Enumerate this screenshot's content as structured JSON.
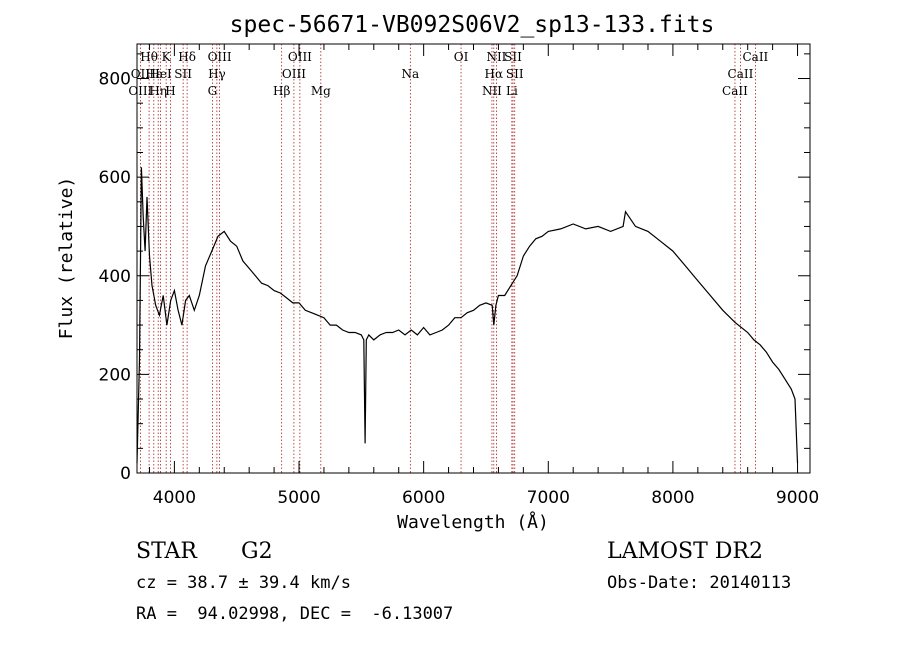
{
  "chart_data": {
    "type": "line",
    "title": "spec-56671-VB092S06V2_sp13-133.fits",
    "xlabel": "Wavelength (Å)",
    "ylabel": "Flux (relative)",
    "xlim": [
      3700,
      9100
    ],
    "ylim": [
      0,
      870
    ],
    "x_ticks": [
      4000,
      5000,
      6000,
      7000,
      8000,
      9000
    ],
    "y_ticks": [
      0,
      200,
      400,
      600,
      800
    ],
    "grid": false,
    "series": [
      {
        "x": [
          3700,
          3720,
          3735,
          3750,
          3765,
          3780,
          3800,
          3820,
          3850,
          3880,
          3910,
          3940,
          3970,
          4000,
          4030,
          4060,
          4090,
          4120,
          4160,
          4200,
          4250,
          4300,
          4350,
          4400,
          4450,
          4500,
          4550,
          4600,
          4650,
          4700,
          4750,
          4800,
          4850,
          4900,
          4950,
          5000,
          5050,
          5100,
          5150,
          5200,
          5250,
          5300,
          5350,
          5400,
          5450,
          5500,
          5520,
          5530,
          5540,
          5560,
          5600,
          5650,
          5700,
          5750,
          5800,
          5850,
          5900,
          5950,
          6000,
          6050,
          6100,
          6150,
          6200,
          6250,
          6300,
          6350,
          6400,
          6450,
          6500,
          6550,
          6563,
          6580,
          6600,
          6650,
          6700,
          6750,
          6800,
          6850,
          6900,
          6950,
          7000,
          7100,
          7200,
          7300,
          7400,
          7500,
          7600,
          7620,
          7700,
          7800,
          7900,
          8000,
          8100,
          8200,
          8300,
          8400,
          8500,
          8600,
          8650,
          8700,
          8750,
          8800,
          8850,
          8900,
          8950,
          8980,
          9000
        ],
        "y": [
          20,
          230,
          620,
          520,
          450,
          560,
          440,
          380,
          340,
          320,
          360,
          300,
          350,
          370,
          330,
          300,
          350,
          360,
          330,
          360,
          420,
          450,
          480,
          490,
          470,
          460,
          430,
          415,
          400,
          385,
          380,
          370,
          365,
          355,
          345,
          345,
          330,
          325,
          320,
          315,
          300,
          300,
          290,
          285,
          285,
          280,
          270,
          60,
          270,
          280,
          270,
          280,
          285,
          285,
          290,
          280,
          290,
          280,
          295,
          280,
          285,
          290,
          300,
          315,
          315,
          325,
          330,
          340,
          345,
          340,
          300,
          340,
          360,
          360,
          380,
          400,
          440,
          460,
          475,
          480,
          490,
          495,
          505,
          495,
          500,
          490,
          500,
          530,
          500,
          490,
          470,
          450,
          420,
          390,
          360,
          330,
          305,
          285,
          270,
          260,
          245,
          225,
          210,
          190,
          170,
          150,
          20
        ]
      }
    ],
    "line_labels": [
      {
        "text": "Hθ",
        "x": 3797,
        "row": 1
      },
      {
        "text": "OII",
        "x": 3727,
        "row": 2
      },
      {
        "text": "OIII",
        "x": 3727,
        "row": 3
      },
      {
        "text": "K",
        "x": 3934,
        "row": 1
      },
      {
        "text": "Hε",
        "x": 3835,
        "row": 2
      },
      {
        "text": "HeI",
        "x": 3889,
        "row": 2
      },
      {
        "text": "Hη",
        "x": 3870,
        "row": 3
      },
      {
        "text": "H",
        "x": 3969,
        "row": 3
      },
      {
        "text": "Hδ",
        "x": 4102,
        "row": 1
      },
      {
        "text": "SII",
        "x": 4070,
        "row": 2
      },
      {
        "text": "OIII",
        "x": 4363,
        "row": 1
      },
      {
        "text": "Hγ",
        "x": 4341,
        "row": 2
      },
      {
        "text": "G",
        "x": 4305,
        "row": 3
      },
      {
        "text": "OIII",
        "x": 5007,
        "row": 1
      },
      {
        "text": "OIII",
        "x": 4959,
        "row": 2
      },
      {
        "text": "Hβ",
        "x": 4861,
        "row": 3
      },
      {
        "text": "Mg",
        "x": 5175,
        "row": 3
      },
      {
        "text": "Na",
        "x": 5893,
        "row": 2
      },
      {
        "text": "OI",
        "x": 6300,
        "row": 1
      },
      {
        "text": "NII",
        "x": 6584,
        "row": 1
      },
      {
        "text": "SII",
        "x": 6717,
        "row": 1
      },
      {
        "text": "Hα",
        "x": 6563,
        "row": 2
      },
      {
        "text": "SII",
        "x": 6731,
        "row": 2
      },
      {
        "text": "NII",
        "x": 6548,
        "row": 3
      },
      {
        "text": "Li",
        "x": 6708,
        "row": 3
      },
      {
        "text": "CaII",
        "x": 8662,
        "row": 1
      },
      {
        "text": "CaII",
        "x": 8542,
        "row": 2
      },
      {
        "text": "CaII",
        "x": 8498,
        "row": 3
      }
    ],
    "line_marker_color": "#a00000",
    "line_color": "#000000"
  },
  "info": {
    "object_class": "STAR",
    "subclass": "G2",
    "survey": "LAMOST DR2",
    "cz": "cz = 38.7 ± 39.4 km/s",
    "obs_date": "Obs-Date: 20140113",
    "coords": "RA =  94.02998, DEC =  -6.13007"
  }
}
